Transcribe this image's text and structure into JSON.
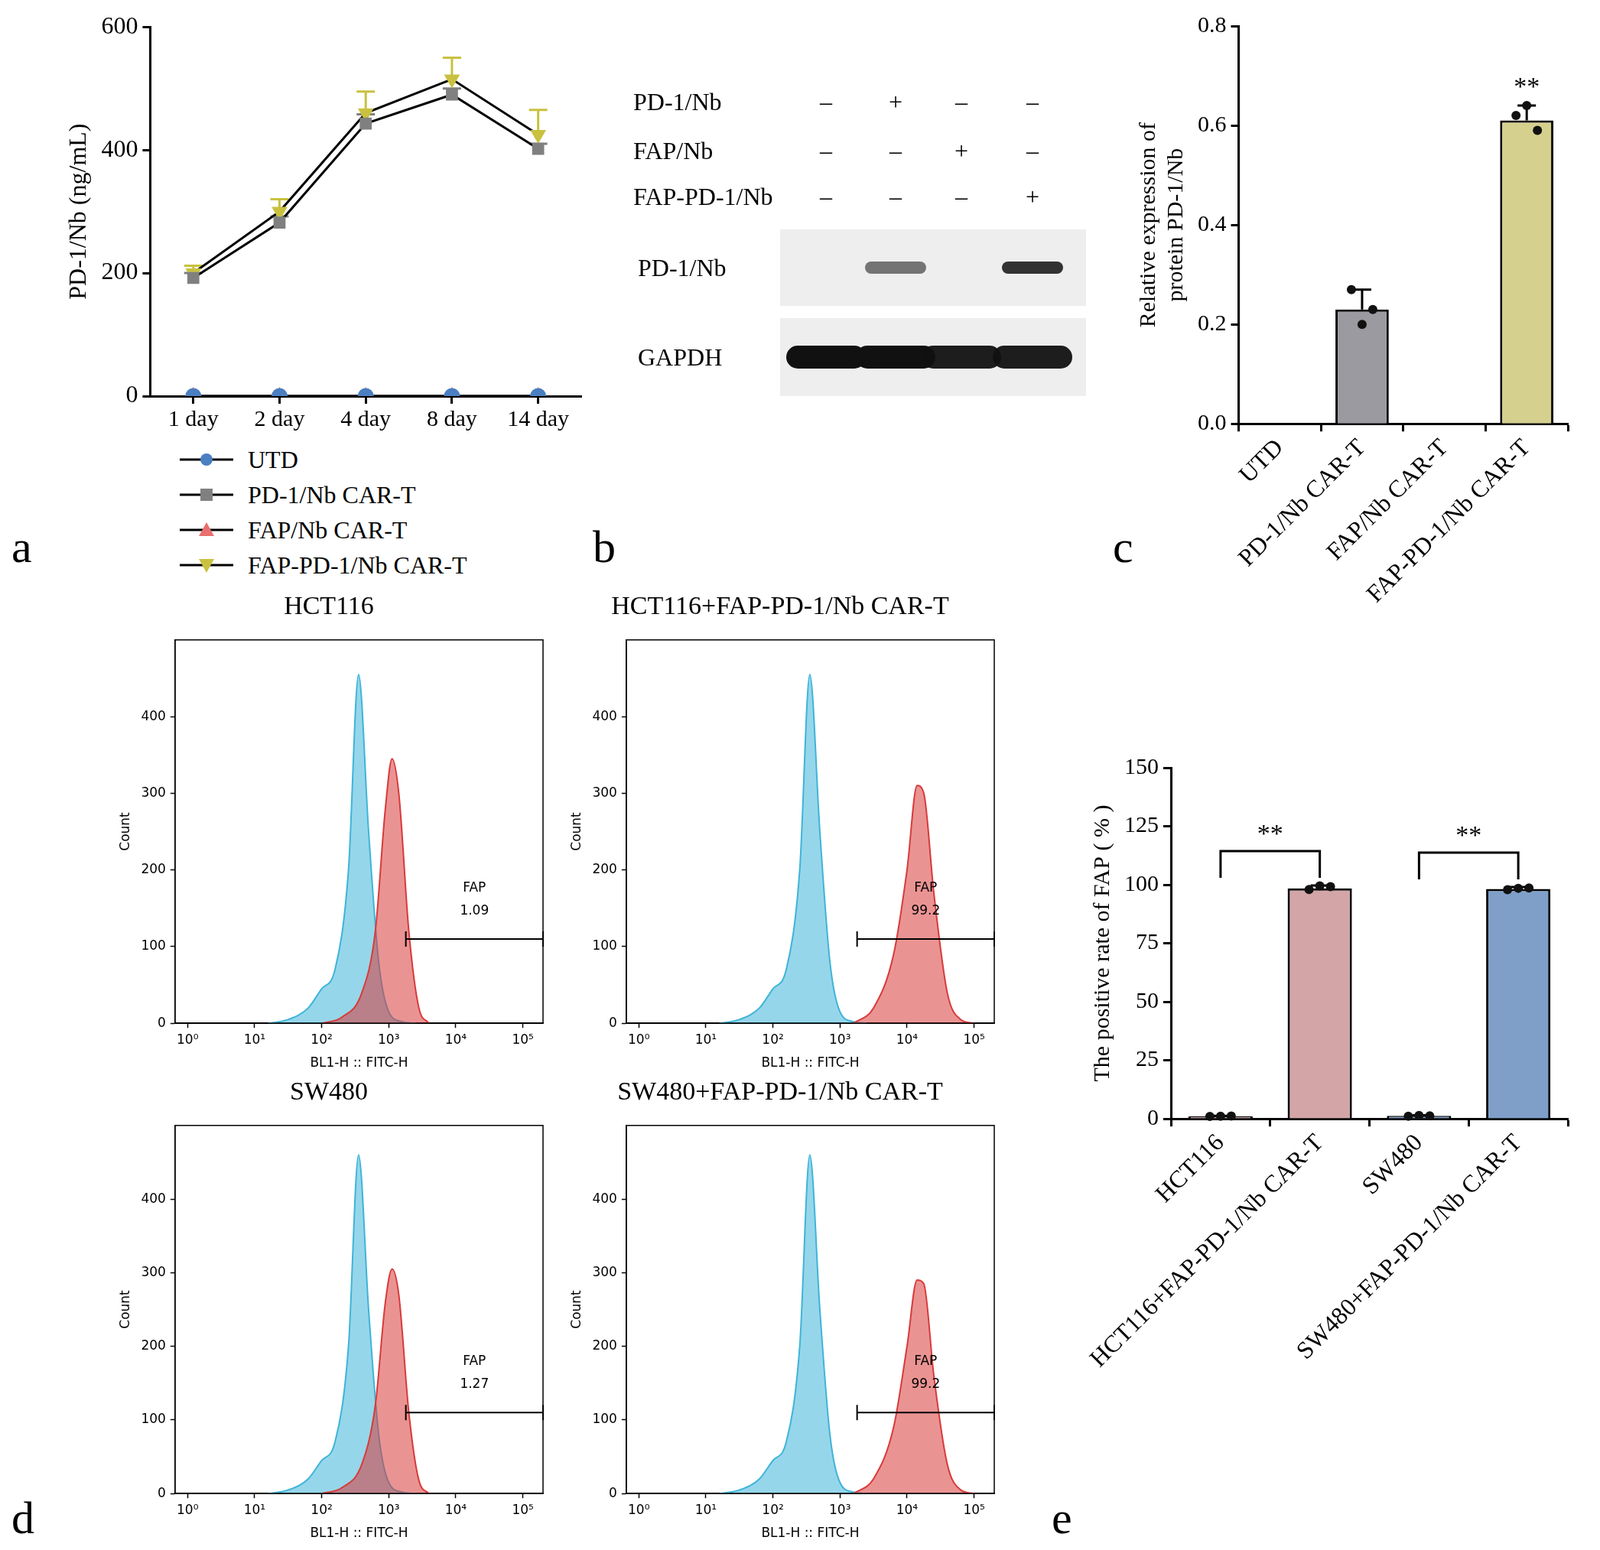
{
  "chart_data": [
    {
      "panel": "a",
      "type": "line",
      "categories": [
        "1 day",
        "2 day",
        "4 day",
        "8 day",
        "14 day"
      ],
      "y_label": "PD-1/Nb (ng/mL)",
      "ylim": [
        0,
        600
      ],
      "yticks": [
        0,
        200,
        400,
        600
      ],
      "grid": false,
      "legend": "bottom",
      "series": [
        {
          "name": "UTD",
          "color": "#4a7fc1",
          "marker": "circle",
          "values": [
            0,
            0,
            0,
            0,
            0
          ]
        },
        {
          "name": "PD-1/Nb CAR-T",
          "color": "#808080",
          "marker": "square",
          "values": [
            192,
            282,
            443,
            490,
            402
          ],
          "errors": [
            8,
            10,
            15,
            10,
            8
          ]
        },
        {
          "name": "FAP/Nb CAR-T",
          "color": "#e8706f",
          "marker": "triangle",
          "values": [
            0,
            0,
            0,
            0,
            0
          ]
        },
        {
          "name": "FAP-PD-1/Nb CAR-T",
          "color": "#c9c13f",
          "marker": "triangle-down",
          "values": [
            200,
            300,
            460,
            515,
            425
          ],
          "errors": [
            12,
            20,
            35,
            35,
            40
          ]
        }
      ]
    },
    {
      "panel": "c",
      "type": "bar",
      "categories": [
        "UTD",
        "PD-1/Nb CAR-T",
        "FAP/Nb CAR-T",
        "FAP-PD-1/Nb CAR-T"
      ],
      "values": [
        0,
        0.23,
        0,
        0.61
      ],
      "errors": [
        0,
        0.04,
        0,
        0.03
      ],
      "points": [
        [],
        [
          0.27,
          0.2,
          0.23
        ],
        [],
        [
          0.62,
          0.64,
          0.59
        ]
      ],
      "colors": [
        "#9a9aa0",
        "#9a9aa0",
        "#9a9aa0",
        "#d6d08f"
      ],
      "y_label": [
        "Relative expression of",
        "protein PD-1/Nb"
      ],
      "ylim": [
        0,
        0.8
      ],
      "yticks": [
        {
          "value": 0,
          "label": "0.0"
        },
        0.2,
        0.4,
        0.6,
        0.8
      ],
      "grid": false,
      "annotations": [
        {
          "text": "**",
          "at": "FAP-PD-1/Nb CAR-T"
        }
      ]
    },
    {
      "panel": "d",
      "type": "line",
      "title": "HCT116",
      "x_label": "BL1-H :: FITC-H",
      "y_label": "Count",
      "log": "x",
      "xlim": [
        0.65,
        200000
      ],
      "xticks": [
        {
          "value": 1,
          "label": "10⁰"
        },
        {
          "value": 10,
          "label": "10¹"
        },
        {
          "value": 100,
          "label": "10²"
        },
        {
          "value": 1000,
          "label": "10³"
        },
        {
          "value": 10000,
          "label": "10⁴"
        },
        {
          "value": 100000,
          "label": "10⁵"
        }
      ],
      "ylim": [
        0,
        500
      ],
      "yticks": [
        0,
        100,
        200,
        300,
        400
      ],
      "grid": false,
      "series": [
        {
          "color": "#3fb4d8",
          "x": [
            16,
            32,
            63,
            100,
            158,
            251,
            355,
            501,
            708,
            1000,
            1585,
            2512
          ],
          "values": [
            0,
            5,
            20,
            45,
            70,
            200,
            455,
            250,
            80,
            15,
            2,
            0
          ]
        },
        {
          "color": "#d83a3a",
          "x": [
            100,
            200,
            398,
            631,
            891,
            1122,
            1413,
            1995,
            2818,
            3981
          ],
          "values": [
            0,
            8,
            40,
            120,
            280,
            345,
            300,
            120,
            20,
            0
          ]
        }
      ],
      "gate": {
        "label": "FAP",
        "value": 1.09,
        "range": [
          1800,
          200000
        ]
      }
    },
    {
      "type": "line",
      "title": "HCT116+FAP-PD-1/Nb CAR-T",
      "x_label": "BL1-H :: FITC-H",
      "y_label": "Count",
      "log": "x",
      "xlim": [
        0.65,
        200000
      ],
      "xticks": [
        {
          "value": 1,
          "label": "10⁰"
        },
        {
          "value": 10,
          "label": "10¹"
        },
        {
          "value": 100,
          "label": "10²"
        },
        {
          "value": 1000,
          "label": "10³"
        },
        {
          "value": 10000,
          "label": "10⁴"
        },
        {
          "value": 100000,
          "label": "10⁵"
        }
      ],
      "ylim": [
        0,
        500
      ],
      "yticks": [
        0,
        100,
        200,
        300,
        400
      ],
      "grid": false,
      "series": [
        {
          "color": "#3fb4d8",
          "x": [
            16,
            32,
            63,
            100,
            158,
            251,
            355,
            501,
            708,
            1000,
            1585,
            2512
          ],
          "values": [
            0,
            5,
            20,
            45,
            70,
            200,
            455,
            250,
            80,
            15,
            2,
            0
          ]
        },
        {
          "color": "#d83a3a",
          "x": [
            1585,
            3162,
            6310,
            10000,
            14125,
            17783,
            25119,
            39811,
            63096,
            100000
          ],
          "values": [
            0,
            20,
            90,
            200,
            310,
            300,
            170,
            40,
            5,
            0
          ]
        }
      ],
      "gate": {
        "label": "FAP",
        "value": 99.2,
        "range": [
          1800,
          200000
        ]
      }
    },
    {
      "type": "line",
      "title": "SW480",
      "x_label": "BL1-H :: FITC-H",
      "y_label": "Count",
      "log": "x",
      "xlim": [
        0.65,
        200000
      ],
      "xticks": [
        {
          "value": 1,
          "label": "10⁰"
        },
        {
          "value": 10,
          "label": "10¹"
        },
        {
          "value": 100,
          "label": "10²"
        },
        {
          "value": 1000,
          "label": "10³"
        },
        {
          "value": 10000,
          "label": "10⁴"
        },
        {
          "value": 100000,
          "label": "10⁵"
        }
      ],
      "ylim": [
        0,
        500
      ],
      "yticks": [
        0,
        100,
        200,
        300,
        400
      ],
      "grid": false,
      "series": [
        {
          "color": "#3fb4d8",
          "x": [
            16,
            32,
            63,
            100,
            158,
            251,
            355,
            501,
            708,
            1000,
            1585,
            2512
          ],
          "values": [
            0,
            5,
            20,
            45,
            70,
            200,
            460,
            250,
            80,
            15,
            2,
            0
          ]
        },
        {
          "color": "#d83a3a",
          "x": [
            100,
            200,
            398,
            631,
            891,
            1122,
            1413,
            1995,
            2818,
            3981
          ],
          "values": [
            0,
            8,
            40,
            120,
            260,
            305,
            270,
            110,
            18,
            0
          ]
        }
      ],
      "gate": {
        "label": "FAP",
        "value": 1.27,
        "range": [
          1800,
          200000
        ]
      }
    },
    {
      "type": "line",
      "title": "SW480+FAP-PD-1/Nb CAR-T",
      "x_label": "BL1-H :: FITC-H",
      "y_label": "Count",
      "log": "x",
      "xlim": [
        0.65,
        200000
      ],
      "xticks": [
        {
          "value": 1,
          "label": "10⁰"
        },
        {
          "value": 10,
          "label": "10¹"
        },
        {
          "value": 100,
          "label": "10²"
        },
        {
          "value": 1000,
          "label": "10³"
        },
        {
          "value": 10000,
          "label": "10⁴"
        },
        {
          "value": 100000,
          "label": "10⁵"
        }
      ],
      "ylim": [
        0,
        500
      ],
      "yticks": [
        0,
        100,
        200,
        300,
        400
      ],
      "grid": false,
      "series": [
        {
          "color": "#3fb4d8",
          "x": [
            16,
            32,
            63,
            100,
            158,
            251,
            355,
            501,
            708,
            1000,
            1585,
            2512
          ],
          "values": [
            0,
            5,
            20,
            45,
            70,
            200,
            460,
            250,
            80,
            15,
            2,
            0
          ]
        },
        {
          "color": "#d83a3a",
          "x": [
            1585,
            3162,
            6310,
            10000,
            14125,
            17783,
            25119,
            39811,
            63096,
            100000
          ],
          "values": [
            0,
            20,
            90,
            200,
            290,
            285,
            160,
            40,
            5,
            0
          ]
        }
      ],
      "gate": {
        "label": "FAP",
        "value": 99.2,
        "range": [
          1800,
          200000
        ]
      }
    },
    {
      "panel": "e",
      "type": "bar",
      "categories": [
        "HCT116",
        "HCT116+FAP-PD-1/Nb CAR-T",
        "SW480",
        "SW480+FAP-PD-1/Nb CAR-T"
      ],
      "values": [
        1.1,
        98.5,
        1.3,
        98.2
      ],
      "errors": [
        0.2,
        1.2,
        0.2,
        0.8
      ],
      "points": [
        [
          1.0,
          1.1,
          1.2
        ],
        [
          98.0,
          99.5,
          99.2
        ],
        [
          1.1,
          1.4,
          1.3
        ],
        [
          97.9,
          98.5,
          98.6
        ]
      ],
      "colors": [
        "#d3a5a6",
        "#d3a5a6",
        "#7f9fc9",
        "#7f9fc9"
      ],
      "y_label": "The positive rate of FAP ( % )",
      "ylim": [
        0,
        150
      ],
      "yticks": [
        0,
        25,
        50,
        75,
        100,
        125,
        150
      ],
      "grid": false,
      "annotations": [
        {
          "text": "**",
          "from": "HCT116",
          "to": "HCT116+FAP-PD-1/Nb CAR-T"
        },
        {
          "text": "**",
          "from": "SW480",
          "to": "SW480+FAP-PD-1/Nb CAR-T"
        }
      ]
    }
  ],
  "blot": {
    "panel": "b",
    "conditions": [
      {
        "name": "PD-1/Nb",
        "signs": [
          "–",
          "+",
          "–",
          "–"
        ]
      },
      {
        "name": "FAP/Nb",
        "signs": [
          "–",
          "–",
          "+",
          "–"
        ]
      },
      {
        "name": "FAP-PD-1/Nb",
        "signs": [
          "–",
          "–",
          "–",
          "+"
        ]
      }
    ],
    "bands": [
      {
        "name": "PD-1/Nb",
        "intensities": [
          0,
          0.55,
          0,
          0.85
        ]
      },
      {
        "name": "GAPDH",
        "intensities": [
          1,
          1,
          0.95,
          0.95
        ]
      }
    ]
  }
}
